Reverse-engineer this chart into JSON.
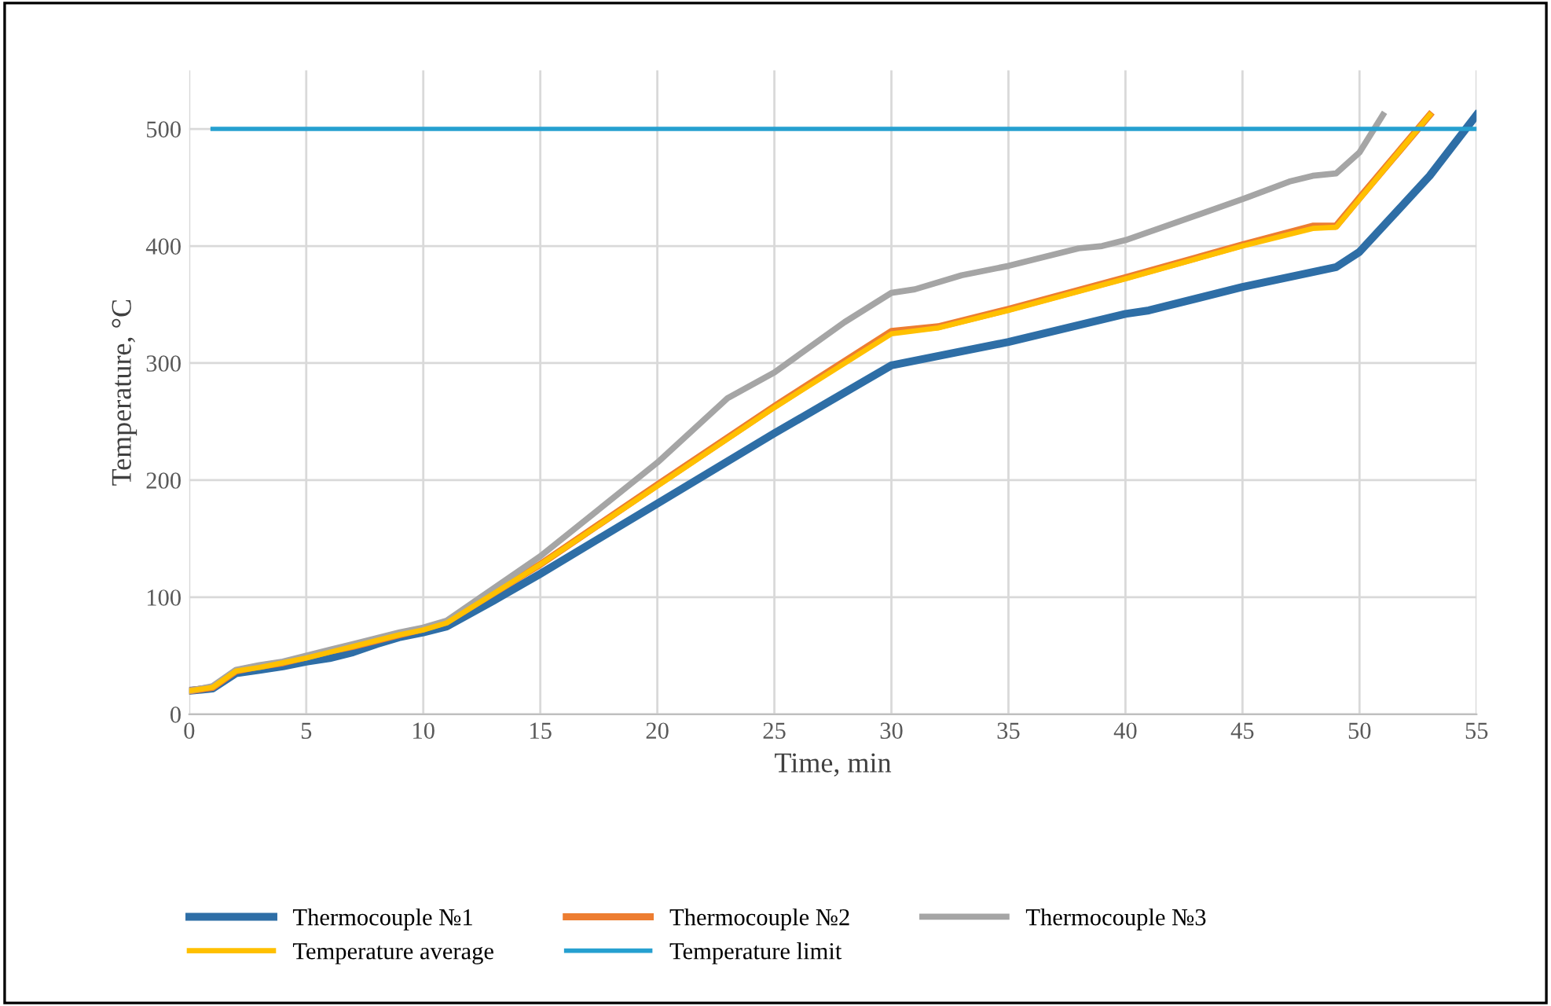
{
  "chart_data": {
    "type": "line",
    "xlabel": "Time, min",
    "ylabel": "Temperature, °C",
    "xlim": [
      0,
      55
    ],
    "xticks": [
      0,
      5,
      10,
      15,
      20,
      25,
      30,
      35,
      40,
      45,
      50,
      55
    ],
    "ylim": [
      0,
      550
    ],
    "yticks": [
      0,
      100,
      200,
      300,
      400,
      500
    ],
    "grid": true,
    "legend": "bottom",
    "marker": "none",
    "line_style": "solid",
    "series": [
      {
        "name": "Thermocouple №1",
        "color": "#2e6ea6",
        "x": [
          0,
          1,
          2,
          3,
          4,
          5,
          6,
          7,
          8,
          9,
          10,
          11,
          13,
          15,
          20,
          25,
          30,
          35,
          40,
          41,
          45,
          49,
          50,
          53,
          55
        ],
        "values": [
          20,
          22,
          35,
          38,
          41,
          45,
          48,
          53,
          60,
          66,
          70,
          75,
          97,
          120,
          180,
          240,
          298,
          318,
          342,
          345,
          365,
          382,
          395,
          460,
          512
        ]
      },
      {
        "name": "Thermocouple №2",
        "color": "#ed7d31",
        "x": [
          0,
          1,
          2,
          3,
          4,
          5,
          6,
          7,
          8,
          9,
          10,
          11,
          15,
          20,
          25,
          30,
          32,
          35,
          40,
          45,
          48,
          49,
          50,
          53
        ],
        "values": [
          20,
          23,
          37,
          41,
          44,
          49,
          54,
          58,
          63,
          68,
          73,
          79,
          128,
          196,
          263,
          327,
          331,
          346,
          373,
          401,
          417,
          417,
          441,
          512
        ]
      },
      {
        "name": "Thermocouple №3",
        "color": "#a5a5a5",
        "x": [
          0,
          1,
          2,
          3,
          4,
          5,
          6,
          7,
          8,
          9,
          10,
          11,
          15,
          20,
          23,
          25,
          28,
          30,
          31,
          33,
          35,
          38,
          39,
          40,
          45,
          47,
          48,
          49,
          50,
          51
        ],
        "values": [
          20,
          24,
          38,
          42,
          45,
          50,
          55,
          60,
          65,
          70,
          74,
          80,
          135,
          215,
          270,
          292,
          335,
          360,
          363,
          375,
          383,
          398,
          400,
          405,
          440,
          455,
          460,
          462,
          480,
          512
        ]
      },
      {
        "name": "Temperature average",
        "color": "#ffc000",
        "x": [
          0,
          1,
          2,
          3,
          4,
          5,
          6,
          7,
          8,
          9,
          10,
          11,
          15,
          20,
          25,
          30,
          32,
          35,
          40,
          45,
          48,
          49,
          50,
          53
        ],
        "values": [
          20,
          23,
          37,
          40,
          44,
          48,
          53,
          58,
          63,
          68,
          72,
          78,
          128,
          195,
          262,
          325,
          330,
          345,
          372,
          400,
          415,
          416,
          440,
          512
        ]
      },
      {
        "name": "Temperature limit",
        "color": "#26a0d0",
        "x": [
          1,
          55
        ],
        "values": [
          500,
          500
        ]
      }
    ]
  }
}
